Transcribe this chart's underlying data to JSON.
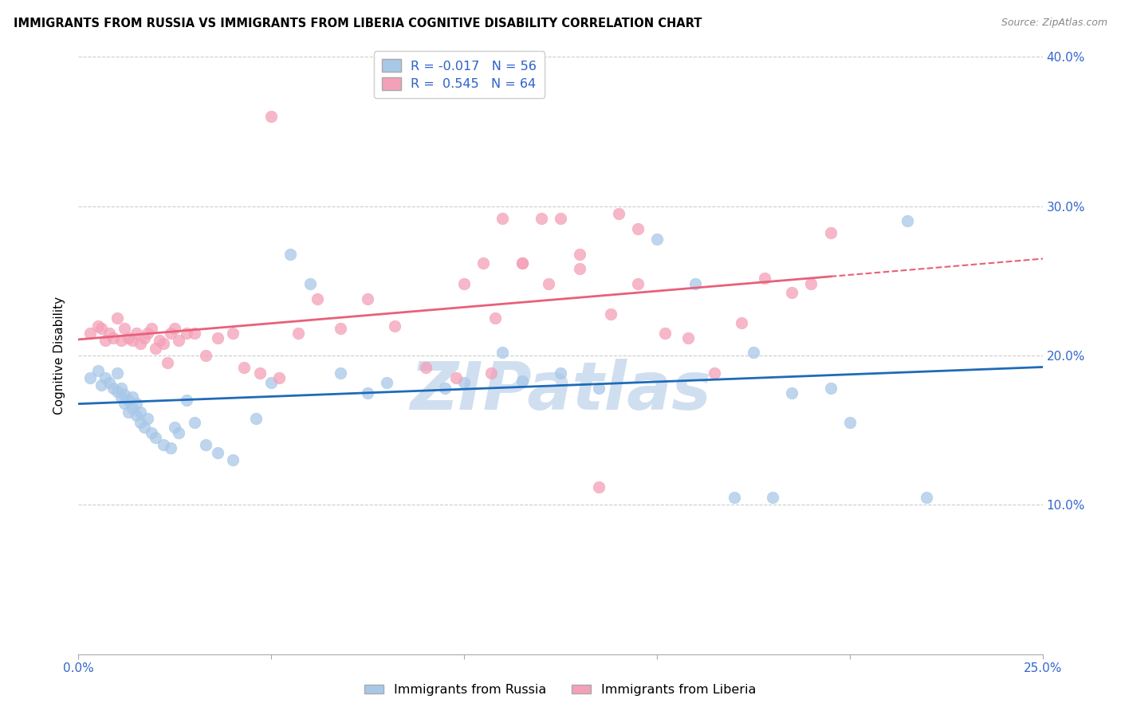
{
  "title": "IMMIGRANTS FROM RUSSIA VS IMMIGRANTS FROM LIBERIA COGNITIVE DISABILITY CORRELATION CHART",
  "source": "Source: ZipAtlas.com",
  "ylabel": "Cognitive Disability",
  "xlabel_russia": "Immigrants from Russia",
  "xlabel_liberia": "Immigrants from Liberia",
  "xlim": [
    0.0,
    0.25
  ],
  "ylim": [
    0.0,
    0.4
  ],
  "xticks": [
    0.0,
    0.05,
    0.1,
    0.15,
    0.2,
    0.25
  ],
  "yticks": [
    0.0,
    0.1,
    0.2,
    0.3,
    0.4
  ],
  "R_russia": -0.017,
  "N_russia": 56,
  "R_liberia": 0.545,
  "N_liberia": 64,
  "color_russia": "#A8C8E8",
  "color_liberia": "#F4A0B8",
  "trendline_russia_color": "#1E6BB8",
  "trendline_liberia_color": "#E8607A",
  "watermark": "ZIPatlas",
  "watermark_color": "#D0DFF0",
  "russia_x": [
    0.003,
    0.005,
    0.006,
    0.007,
    0.008,
    0.009,
    0.01,
    0.01,
    0.011,
    0.011,
    0.012,
    0.012,
    0.013,
    0.013,
    0.014,
    0.014,
    0.015,
    0.015,
    0.016,
    0.016,
    0.017,
    0.018,
    0.019,
    0.02,
    0.022,
    0.024,
    0.025,
    0.026,
    0.028,
    0.03,
    0.033,
    0.036,
    0.04,
    0.046,
    0.05,
    0.055,
    0.06,
    0.068,
    0.075,
    0.08,
    0.095,
    0.1,
    0.11,
    0.115,
    0.125,
    0.135,
    0.15,
    0.16,
    0.175,
    0.185,
    0.195,
    0.2,
    0.215,
    0.17,
    0.18,
    0.22
  ],
  "russia_y": [
    0.185,
    0.19,
    0.18,
    0.185,
    0.182,
    0.178,
    0.176,
    0.188,
    0.172,
    0.178,
    0.168,
    0.174,
    0.162,
    0.17,
    0.165,
    0.172,
    0.16,
    0.168,
    0.155,
    0.162,
    0.152,
    0.158,
    0.148,
    0.145,
    0.14,
    0.138,
    0.152,
    0.148,
    0.17,
    0.155,
    0.14,
    0.135,
    0.13,
    0.158,
    0.182,
    0.268,
    0.248,
    0.188,
    0.175,
    0.182,
    0.178,
    0.182,
    0.202,
    0.183,
    0.188,
    0.178,
    0.278,
    0.248,
    0.202,
    0.175,
    0.178,
    0.155,
    0.29,
    0.105,
    0.105,
    0.105
  ],
  "liberia_x": [
    0.003,
    0.005,
    0.006,
    0.007,
    0.008,
    0.009,
    0.01,
    0.011,
    0.012,
    0.013,
    0.014,
    0.015,
    0.016,
    0.017,
    0.018,
    0.019,
    0.02,
    0.021,
    0.022,
    0.023,
    0.024,
    0.025,
    0.026,
    0.028,
    0.03,
    0.033,
    0.036,
    0.04,
    0.043,
    0.047,
    0.052,
    0.057,
    0.062,
    0.068,
    0.075,
    0.082,
    0.09,
    0.098,
    0.107,
    0.115,
    0.122,
    0.13,
    0.138,
    0.145,
    0.152,
    0.158,
    0.165,
    0.172,
    0.178,
    0.185,
    0.19,
    0.195,
    0.05,
    0.1,
    0.105,
    0.11,
    0.115,
    0.12,
    0.108,
    0.125,
    0.13,
    0.135,
    0.14,
    0.145
  ],
  "liberia_y": [
    0.215,
    0.22,
    0.218,
    0.21,
    0.215,
    0.212,
    0.225,
    0.21,
    0.218,
    0.212,
    0.21,
    0.215,
    0.208,
    0.212,
    0.215,
    0.218,
    0.205,
    0.21,
    0.208,
    0.195,
    0.215,
    0.218,
    0.21,
    0.215,
    0.215,
    0.2,
    0.212,
    0.215,
    0.192,
    0.188,
    0.185,
    0.215,
    0.238,
    0.218,
    0.238,
    0.22,
    0.192,
    0.185,
    0.188,
    0.262,
    0.248,
    0.258,
    0.228,
    0.248,
    0.215,
    0.212,
    0.188,
    0.222,
    0.252,
    0.242,
    0.248,
    0.282,
    0.36,
    0.248,
    0.262,
    0.292,
    0.262,
    0.292,
    0.225,
    0.292,
    0.268,
    0.112,
    0.295,
    0.285
  ]
}
